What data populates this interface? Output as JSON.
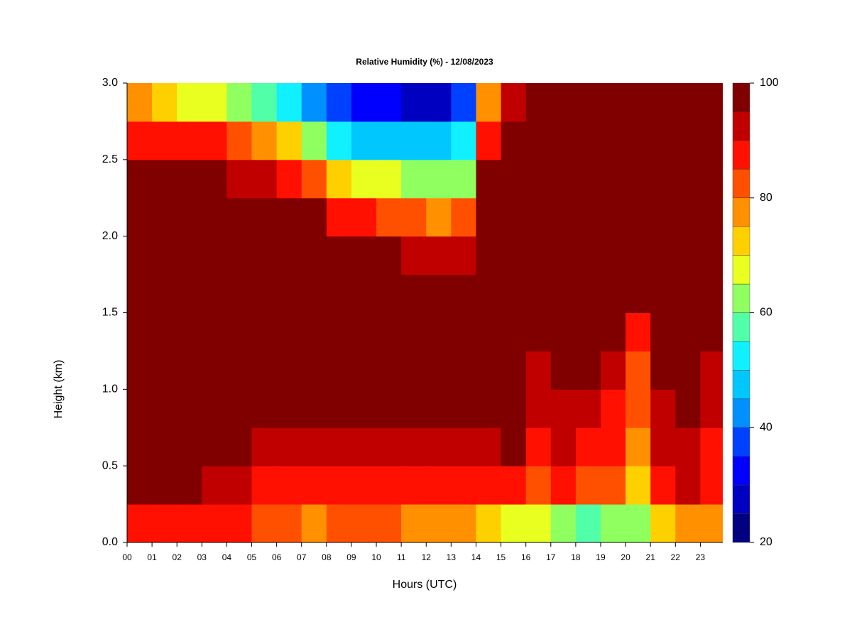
{
  "chart_data": {
    "type": "heatmap",
    "title": "Relative Humidity (%) - 12/08/2023",
    "xlabel": "Hours (UTC)",
    "ylabel": "Height (km)",
    "x": [
      0.5,
      1.5,
      2.5,
      3.5,
      4.5,
      5.5,
      6.5,
      7.5,
      8.5,
      9.5,
      10.5,
      11.5,
      12.5,
      13.5,
      14.5,
      15.5,
      16.5,
      17.5,
      18.5,
      19.5,
      20.5,
      21.5,
      22.5,
      23.5
    ],
    "y": [
      0.125,
      0.375,
      0.625,
      0.875,
      1.125,
      1.375,
      1.625,
      1.875,
      2.125,
      2.375,
      2.625,
      2.875
    ],
    "values": [
      [
        88,
        100,
        100,
        100,
        100,
        100,
        100,
        100,
        100,
        95,
        88,
        75
      ],
      [
        88,
        100,
        100,
        100,
        100,
        100,
        100,
        100,
        100,
        97,
        88,
        72
      ],
      [
        88,
        100,
        100,
        100,
        100,
        100,
        100,
        100,
        100,
        97,
        85,
        68
      ],
      [
        85,
        92,
        95,
        100,
        100,
        100,
        100,
        100,
        100,
        95,
        85,
        65
      ],
      [
        85,
        90,
        95,
        100,
        100,
        100,
        100,
        100,
        100,
        93,
        82,
        60
      ],
      [
        83,
        88,
        92,
        97,
        100,
        100,
        100,
        100,
        100,
        92,
        78,
        55
      ],
      [
        80,
        88,
        90,
        97,
        100,
        100,
        100,
        100,
        100,
        88,
        72,
        50
      ],
      [
        78,
        88,
        92,
        97,
        100,
        100,
        100,
        100,
        95,
        80,
        60,
        40
      ],
      [
        80,
        88,
        92,
        97,
        100,
        100,
        100,
        98,
        88,
        72,
        52,
        35
      ],
      [
        80,
        88,
        90,
        95,
        100,
        100,
        100,
        97,
        85,
        68,
        48,
        32
      ],
      [
        80,
        88,
        90,
        95,
        98,
        100,
        100,
        95,
        82,
        65,
        45,
        30
      ],
      [
        78,
        88,
        90,
        95,
        98,
        100,
        98,
        92,
        80,
        62,
        45,
        28
      ],
      [
        78,
        87,
        90,
        95,
        98,
        100,
        97,
        90,
        78,
        60,
        45,
        28
      ],
      [
        75,
        85,
        90,
        95,
        100,
        100,
        100,
        92,
        80,
        62,
        50,
        35
      ],
      [
        72,
        85,
        92,
        97,
        100,
        100,
        100,
        100,
        100,
        97,
        88,
        75
      ],
      [
        68,
        85,
        95,
        100,
        100,
        100,
        100,
        100,
        100,
        100,
        97,
        92
      ],
      [
        65,
        80,
        85,
        90,
        93,
        97,
        100,
        100,
        100,
        100,
        100,
        100
      ],
      [
        62,
        85,
        90,
        93,
        95,
        100,
        100,
        100,
        100,
        100,
        100,
        97
      ],
      [
        55,
        82,
        88,
        92,
        95,
        98,
        100,
        100,
        100,
        100,
        100,
        95
      ],
      [
        60,
        80,
        85,
        88,
        92,
        95,
        100,
        100,
        100,
        100,
        100,
        100
      ],
      [
        62,
        72,
        78,
        80,
        82,
        88,
        97,
        100,
        100,
        100,
        100,
        100
      ],
      [
        70,
        88,
        90,
        92,
        95,
        97,
        100,
        100,
        100,
        100,
        100,
        100
      ],
      [
        75,
        90,
        92,
        95,
        97,
        100,
        100,
        100,
        100,
        100,
        100,
        97
      ],
      [
        75,
        85,
        88,
        90,
        92,
        95,
        97,
        100,
        100,
        100,
        100,
        100
      ]
    ],
    "xlim": [
      0,
      23.9
    ],
    "ylim": [
      0,
      3
    ],
    "xticks": [
      {
        "value": 0,
        "label": "00"
      },
      {
        "value": 1,
        "label": "01"
      },
      {
        "value": 2,
        "label": "02"
      },
      {
        "value": 3,
        "label": "03"
      },
      {
        "value": 4,
        "label": "04"
      },
      {
        "value": 5,
        "label": "05"
      },
      {
        "value": 6,
        "label": "06"
      },
      {
        "value": 7,
        "label": "07"
      },
      {
        "value": 8,
        "label": "08"
      },
      {
        "value": 9,
        "label": "09"
      },
      {
        "value": 10,
        "label": "10"
      },
      {
        "value": 11,
        "label": "11"
      },
      {
        "value": 12,
        "label": "12"
      },
      {
        "value": 13,
        "label": "13"
      },
      {
        "value": 14,
        "label": "14"
      },
      {
        "value": 15,
        "label": "15"
      },
      {
        "value": 16,
        "label": "16"
      },
      {
        "value": 17,
        "label": "17"
      },
      {
        "value": 18,
        "label": "18"
      },
      {
        "value": 19,
        "label": "19"
      },
      {
        "value": 20,
        "label": "20"
      },
      {
        "value": 21,
        "label": "21"
      },
      {
        "value": 22,
        "label": "22"
      },
      {
        "value": 23,
        "label": "23"
      }
    ],
    "yticks": [
      {
        "value": 0,
        "label": "0.0"
      },
      {
        "value": 0.5,
        "label": "0.5"
      },
      {
        "value": 1,
        "label": "1.0"
      },
      {
        "value": 1.5,
        "label": "1.5"
      },
      {
        "value": 2,
        "label": "2.0"
      },
      {
        "value": 2.5,
        "label": "2.5"
      },
      {
        "value": 3,
        "label": "3.0"
      }
    ],
    "colorbar": {
      "levels": [
        20,
        25,
        30,
        35,
        40,
        45,
        50,
        55,
        60,
        65,
        70,
        75,
        80,
        85,
        90,
        95,
        100
      ],
      "colors": [
        "#000080",
        "#0000c0",
        "#0000ff",
        "#0040ff",
        "#0090ff",
        "#00c8ff",
        "#10f0ff",
        "#50ffa8",
        "#90ff60",
        "#e8ff20",
        "#ffd000",
        "#ff9000",
        "#ff5000",
        "#ff1000",
        "#c00000",
        "#800000"
      ],
      "ticks": [
        20,
        40,
        60,
        80,
        100
      ]
    }
  }
}
